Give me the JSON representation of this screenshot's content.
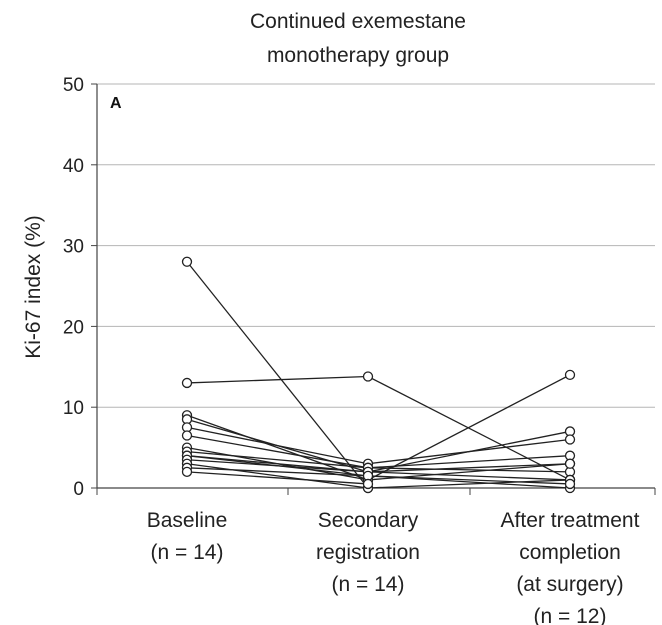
{
  "chart_data": {
    "type": "line",
    "panel_label": "A",
    "title_lines": [
      "Continued exemestane",
      "monotherapy group"
    ],
    "ylabel": "Ki-67 index (%)",
    "ylim": [
      0,
      50
    ],
    "yticks": [
      "0",
      "10",
      "20",
      "30",
      "40",
      "50"
    ],
    "grid": "horizontal",
    "categories": [
      [
        "Baseline",
        "(n = 14)"
      ],
      [
        "Secondary",
        "registration",
        "(n = 14)"
      ],
      [
        "After treatment",
        "completion",
        "(at surgery)",
        "(n = 12)"
      ]
    ],
    "series": [
      {
        "values": [
          28,
          0,
          null
        ]
      },
      {
        "values": [
          13,
          13.8,
          1
        ]
      },
      {
        "values": [
          9,
          1,
          14
        ]
      },
      {
        "values": [
          8.5,
          2,
          7
        ]
      },
      {
        "values": [
          7.5,
          3,
          6
        ]
      },
      {
        "values": [
          6.5,
          2.5,
          4
        ]
      },
      {
        "values": [
          5,
          1,
          3
        ]
      },
      {
        "values": [
          4.5,
          2.5,
          2
        ]
      },
      {
        "values": [
          4,
          2,
          1
        ]
      },
      {
        "values": [
          4,
          1.5,
          0
        ]
      },
      {
        "values": [
          3.5,
          2,
          3
        ]
      },
      {
        "values": [
          3,
          0,
          1
        ]
      },
      {
        "values": [
          2.5,
          1.5,
          0.5
        ]
      },
      {
        "values": [
          2,
          0.5,
          null
        ]
      }
    ]
  }
}
